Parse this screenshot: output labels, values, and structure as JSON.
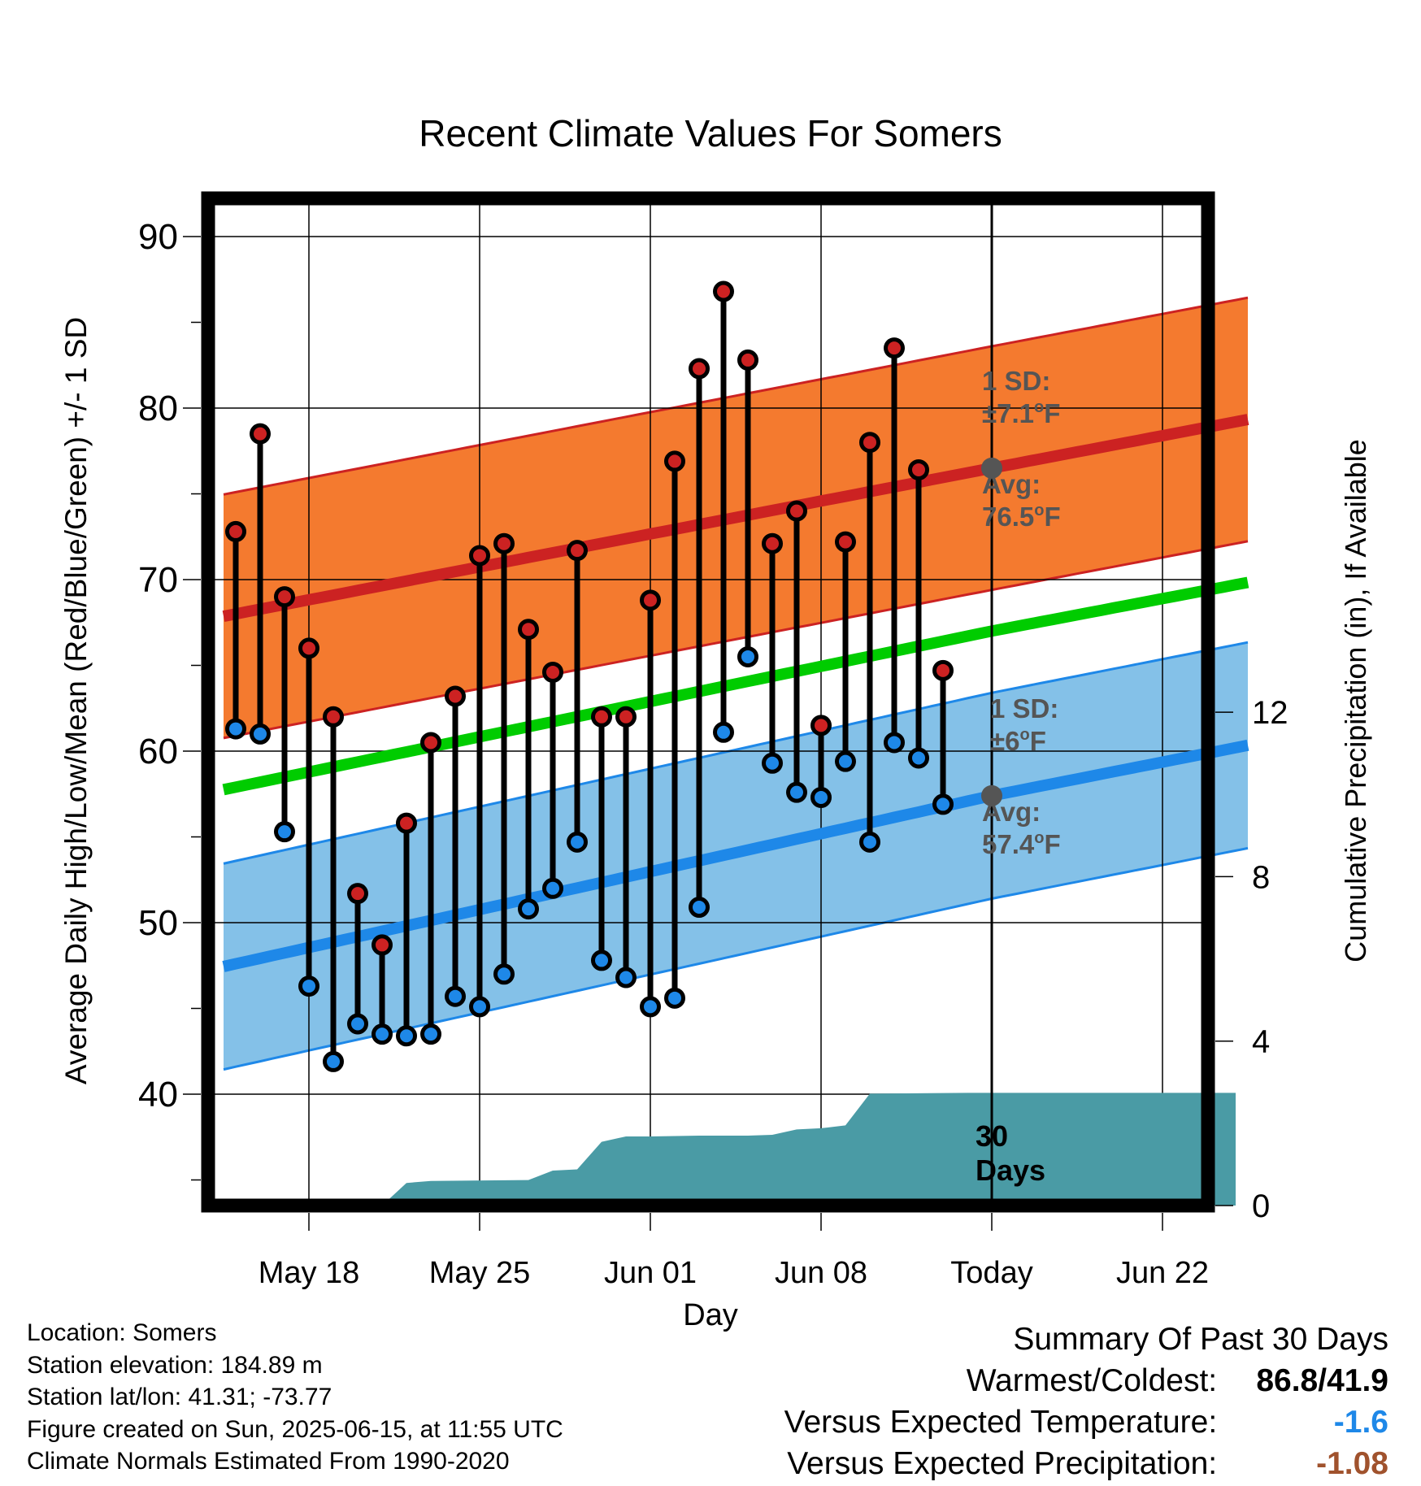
{
  "chart_data": {
    "type": "line",
    "title": "Recent Climate Values For Somers",
    "xlabel": "Day",
    "ylabel": "Average Daily High/Low/Mean (Red/Blue/Green) +/- 1 SD",
    "y2label": "Cumulative Precipitation (in), If Available",
    "ylim": [
      34.5,
      92
    ],
    "y2lim": [
      0,
      24.5
    ],
    "yticks": [
      40,
      50,
      60,
      70,
      80,
      90
    ],
    "y2ticks": [
      0,
      4,
      8,
      12
    ],
    "x_range": [
      "2025-05-15",
      "2025-06-27"
    ],
    "xticks": [
      {
        "date": "2025-05-18",
        "label": "May 18"
      },
      {
        "date": "2025-05-25",
        "label": "May 25"
      },
      {
        "date": "2025-06-01",
        "label": "Jun 01"
      },
      {
        "date": "2025-06-08",
        "label": "Jun 08"
      },
      {
        "date": "2025-06-15",
        "label": "Today"
      },
      {
        "date": "2025-06-22",
        "label": "Jun 22"
      }
    ],
    "grid": true,
    "today": "2025-06-15",
    "days_label": "30\nDays",
    "colors": {
      "high": "#cc2222",
      "high_band": "#f47a2f",
      "low": "#1e88e8",
      "low_band": "#84c1e8",
      "mean": "#00cc00",
      "precip": "#4a9ba5"
    },
    "normals": {
      "dates": [
        "2025-05-15",
        "2025-06-15",
        "2025-06-25"
      ],
      "high": [
        68.0,
        76.5,
        79.2
      ],
      "high_sd": 7.1,
      "low": [
        47.6,
        57.4,
        60.2
      ],
      "low_sd": 6.0,
      "mean": [
        57.9,
        67.0,
        69.7
      ]
    },
    "high_annotation": {
      "sd": "1 SD:",
      "sd_value": "±7.1",
      "avg": "Avg:",
      "avg_value": "76.5",
      "unit": "F"
    },
    "low_annotation": {
      "sd": "1 SD:",
      "sd_value": "±6",
      "avg": "Avg:",
      "avg_value": "57.4",
      "unit": "F"
    },
    "series": [
      {
        "name": "Daily High",
        "x": [
          "2025-05-15",
          "2025-05-16",
          "2025-05-17",
          "2025-05-18",
          "2025-05-19",
          "2025-05-20",
          "2025-05-21",
          "2025-05-22",
          "2025-05-23",
          "2025-05-24",
          "2025-05-25",
          "2025-05-26",
          "2025-05-27",
          "2025-05-28",
          "2025-05-29",
          "2025-05-30",
          "2025-05-31",
          "2025-06-01",
          "2025-06-02",
          "2025-06-03",
          "2025-06-04",
          "2025-06-05",
          "2025-06-06",
          "2025-06-07",
          "2025-06-08",
          "2025-06-09",
          "2025-06-10",
          "2025-06-11",
          "2025-06-12",
          "2025-06-13",
          "2025-06-14"
        ],
        "values": [
          72.8,
          78.5,
          69.0,
          66.0,
          62.0,
          51.7,
          48.7,
          55.8,
          60.5,
          63.2,
          71.4,
          72.1,
          67.1,
          64.6,
          71.7,
          62.0,
          62.0,
          68.8,
          76.9,
          82.3,
          86.8,
          82.8,
          72.1,
          74.0,
          61.5,
          72.2,
          78.0,
          83.5,
          76.4,
          64.7,
          null
        ]
      },
      {
        "name": "Daily Low",
        "x": [
          "2025-05-15",
          "2025-05-16",
          "2025-05-17",
          "2025-05-18",
          "2025-05-19",
          "2025-05-20",
          "2025-05-21",
          "2025-05-22",
          "2025-05-23",
          "2025-05-24",
          "2025-05-25",
          "2025-05-26",
          "2025-05-27",
          "2025-05-28",
          "2025-05-29",
          "2025-05-30",
          "2025-05-31",
          "2025-06-01",
          "2025-06-02",
          "2025-06-03",
          "2025-06-04",
          "2025-06-05",
          "2025-06-06",
          "2025-06-07",
          "2025-06-08",
          "2025-06-09",
          "2025-06-10",
          "2025-06-11",
          "2025-06-12",
          "2025-06-13",
          "2025-06-14"
        ],
        "values": [
          61.3,
          61.0,
          55.3,
          46.3,
          41.9,
          44.1,
          43.5,
          43.4,
          43.5,
          45.7,
          45.1,
          47.0,
          50.8,
          52.0,
          54.7,
          47.8,
          46.8,
          45.1,
          45.6,
          50.9,
          61.1,
          65.5,
          59.3,
          57.6,
          57.3,
          59.4,
          54.7,
          60.5,
          59.6,
          56.9,
          null
        ]
      },
      {
        "name": "Cumulative Precipitation",
        "x": [
          "2025-05-15",
          "2025-05-21",
          "2025-05-22",
          "2025-05-23",
          "2025-05-27",
          "2025-05-28",
          "2025-05-29",
          "2025-05-30",
          "2025-05-31",
          "2025-06-01",
          "2025-06-03",
          "2025-06-05",
          "2025-06-06",
          "2025-06-07",
          "2025-06-08",
          "2025-06-09",
          "2025-06-10",
          "2025-06-14",
          "2025-06-25"
        ],
        "values": [
          0,
          0,
          0.55,
          0.6,
          0.62,
          0.85,
          0.88,
          1.55,
          1.68,
          1.68,
          1.7,
          1.7,
          1.72,
          1.85,
          1.88,
          1.95,
          2.72,
          2.74,
          2.74
        ]
      }
    ]
  },
  "info": {
    "location": "Location: Somers",
    "elevation": "Station elevation: 184.89 m",
    "latlon": "Station lat/lon: 41.31; -73.77",
    "created": "Figure created on Sun, 2025-06-15, at 11:55 UTC",
    "normals": "Climate Normals Estimated From 1990-2020"
  },
  "summary": {
    "title": "Summary Of Past 30 Days",
    "warm_cold_label": "Warmest/Coldest:",
    "warm_cold_value": "86.8/41.9",
    "temp_label": "Versus Expected Temperature:",
    "temp_value": "-1.6",
    "temp_color": "#1e88e8",
    "precip_label": "Versus Expected Precipitation:",
    "precip_value": "-1.08",
    "precip_color": "#a0522d"
  }
}
